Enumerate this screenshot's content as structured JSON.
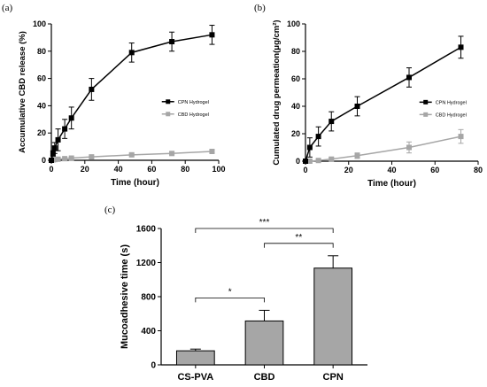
{
  "chart_data": [
    {
      "panel": "(a)",
      "type": "line",
      "xlabel": "Time (hour)",
      "ylabel": "Accumulative CBD release (%)",
      "xlim": [
        0,
        100
      ],
      "ylim": [
        0,
        100
      ],
      "xticks": [
        "0",
        "20",
        "40",
        "60",
        "80",
        "100"
      ],
      "yticks": [
        "0",
        "20",
        "40",
        "60",
        "80",
        "100"
      ],
      "legend": "center-right",
      "series": [
        {
          "name": "CPN Hydrogel",
          "color": "#000000",
          "marker": "square",
          "x": [
            0,
            1,
            2,
            4,
            8,
            12,
            24,
            48,
            72,
            96
          ],
          "y": [
            0,
            5,
            9,
            15,
            23,
            31,
            52,
            79,
            87,
            92
          ],
          "err": [
            0,
            2,
            4,
            8,
            7,
            8,
            8,
            7,
            7,
            7
          ]
        },
        {
          "name": "CBD Hydrogel",
          "color": "#a6a6a6",
          "marker": "square",
          "x": [
            0,
            1,
            2,
            4,
            8,
            12,
            24,
            48,
            72,
            96
          ],
          "y": [
            0,
            0.3,
            0.5,
            0.8,
            1.2,
            1.6,
            2.5,
            4,
            5,
            6.5
          ],
          "err": [
            0,
            0.2,
            0.2,
            0.3,
            0.3,
            0.4,
            0.5,
            0.6,
            0.8,
            1
          ]
        }
      ]
    },
    {
      "panel": "(b)",
      "type": "line",
      "xlabel": "Time (hour)",
      "ylabel": "Cumulated drug permeation(μg/cm²)",
      "xlim": [
        0,
        80
      ],
      "ylim": [
        0,
        100
      ],
      "xticks": [
        "0",
        "20",
        "40",
        "60",
        "80"
      ],
      "yticks": [
        "0",
        "20",
        "40",
        "60",
        "80",
        "100"
      ],
      "legend": "center-right",
      "series": [
        {
          "name": "CPN Hydrogel",
          "color": "#000000",
          "marker": "square",
          "x": [
            0,
            2,
            6,
            12,
            24,
            48,
            72
          ],
          "y": [
            0,
            10,
            18,
            29,
            40,
            61,
            83
          ],
          "err": [
            0,
            7,
            7,
            7,
            7,
            7,
            8
          ]
        },
        {
          "name": "CBD Hydrogel",
          "color": "#a6a6a6",
          "marker": "square",
          "x": [
            0,
            2,
            6,
            12,
            24,
            48,
            72
          ],
          "y": [
            0,
            0,
            0.5,
            1.5,
            4,
            10,
            18
          ],
          "err": [
            0,
            0.5,
            0.8,
            1,
            2,
            4,
            5
          ]
        }
      ]
    },
    {
      "panel": "(c)",
      "type": "bar",
      "xlabel": "",
      "ylabel": "Mucoadhesive time (s)",
      "ylim": [
        0,
        1600
      ],
      "yticks": [
        "0",
        "400",
        "800",
        "1200",
        "1600"
      ],
      "categories": [
        "CS-PVA",
        "CBD",
        "CPN"
      ],
      "values": [
        165,
        515,
        1135
      ],
      "err": [
        20,
        125,
        145
      ],
      "bar_color": "#a6a6a6",
      "significance": [
        {
          "from": 0,
          "to": 1,
          "label": "*"
        },
        {
          "from": 1,
          "to": 2,
          "label": "**"
        },
        {
          "from": 0,
          "to": 2,
          "label": "***"
        }
      ]
    }
  ]
}
